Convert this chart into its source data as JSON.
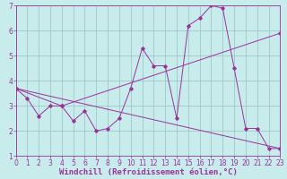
{
  "background_color": "#c8ecec",
  "grid_color": "#a0c8c8",
  "line_color": "#993399",
  "xlabel": "Windchill (Refroidissement éolien,°C)",
  "xlim": [
    0,
    23
  ],
  "ylim": [
    1,
    7
  ],
  "xticks": [
    0,
    1,
    2,
    3,
    4,
    5,
    6,
    7,
    8,
    9,
    10,
    11,
    12,
    13,
    14,
    15,
    16,
    17,
    18,
    19,
    20,
    21,
    22,
    23
  ],
  "yticks": [
    1,
    2,
    3,
    4,
    5,
    6,
    7
  ],
  "line1_x": [
    0,
    1,
    2,
    3,
    4,
    5,
    6,
    7,
    8,
    9,
    10,
    11,
    12,
    13,
    14,
    15,
    16,
    17,
    18,
    19,
    20,
    21,
    22,
    23
  ],
  "line1_y": [
    3.7,
    3.3,
    2.6,
    3.0,
    3.0,
    2.4,
    2.8,
    2.0,
    2.1,
    2.5,
    3.7,
    5.3,
    4.6,
    4.6,
    2.5,
    6.2,
    6.5,
    7.0,
    6.9,
    4.5,
    2.1,
    2.1,
    1.3,
    1.3
  ],
  "line2_x": [
    0,
    4,
    23
  ],
  "line2_y": [
    3.7,
    3.0,
    5.9
  ],
  "line3_x": [
    0,
    23
  ],
  "line3_y": [
    3.7,
    1.3
  ],
  "tick_fontsize": 5.5,
  "xlabel_fontsize": 6.5,
  "marker": "D",
  "markersize": 1.8,
  "linewidth": 0.7
}
